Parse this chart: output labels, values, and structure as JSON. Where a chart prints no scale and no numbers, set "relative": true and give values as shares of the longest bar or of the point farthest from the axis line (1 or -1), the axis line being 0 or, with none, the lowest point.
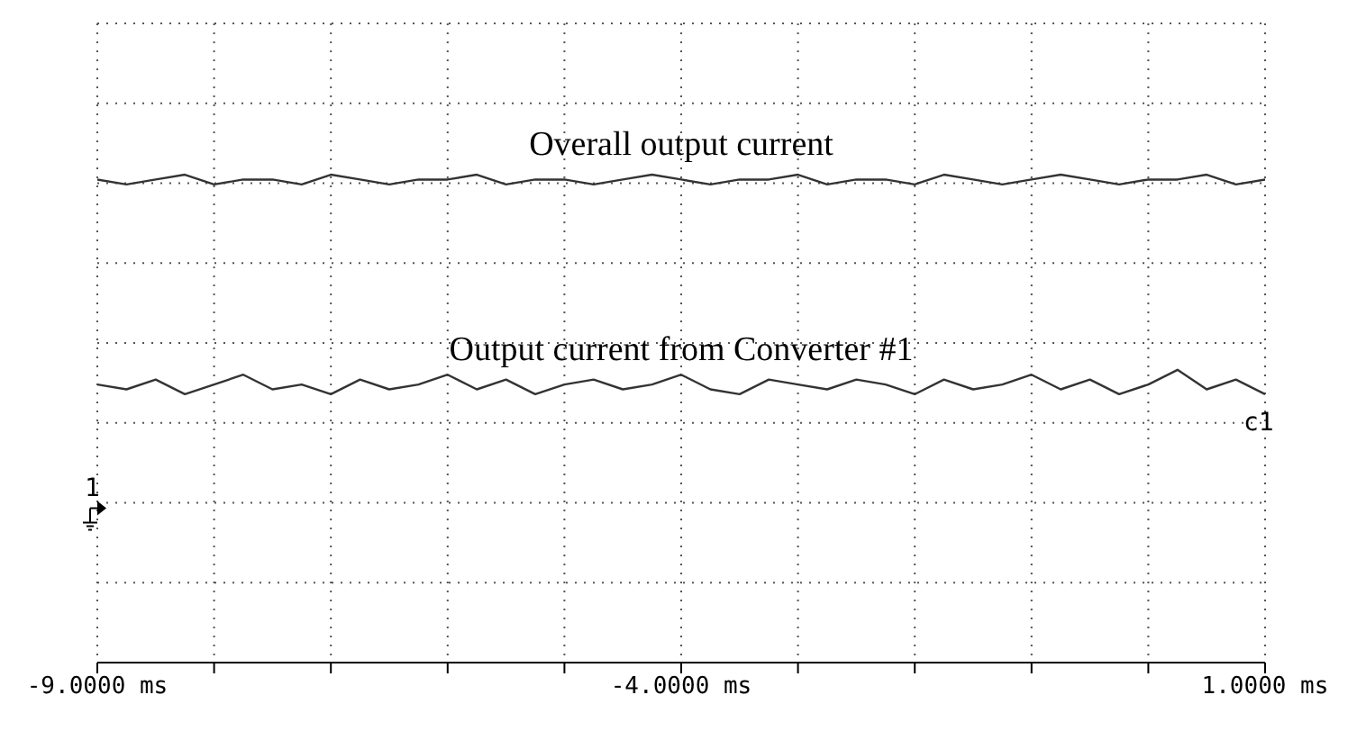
{
  "chart_data": {
    "type": "line",
    "relative": true,
    "xlim": [
      -9,
      1
    ],
    "xticks": [
      {
        "value": -9,
        "label": "-9.0000 ms"
      },
      {
        "value": -8,
        "label": null
      },
      {
        "value": -7,
        "label": null
      },
      {
        "value": -6,
        "label": null
      },
      {
        "value": -5,
        "label": null
      },
      {
        "value": -4,
        "label": "-4.0000 ms"
      },
      {
        "value": -3,
        "label": null
      },
      {
        "value": -2,
        "label": null
      },
      {
        "value": -1,
        "label": null
      },
      {
        "value": 0,
        "label": null
      },
      {
        "value": 1,
        "label": "1.0000 ms"
      }
    ],
    "x": [
      -9,
      -8.75,
      -8.5,
      -8.25,
      -8,
      -7.75,
      -7.5,
      -7.25,
      -7,
      -6.75,
      -6.5,
      -6.25,
      -6,
      -5.75,
      -5.5,
      -5.25,
      -5,
      -4.75,
      -4.5,
      -4.25,
      -4,
      -3.75,
      -3.5,
      -3.25,
      -3,
      -2.75,
      -2.5,
      -2.25,
      -2,
      -1.75,
      -1.5,
      -1.25,
      -1,
      -0.75,
      -0.5,
      -0.25,
      0,
      0.25,
      0.5,
      0.75,
      1
    ],
    "series": [
      {
        "name": "Overall output current",
        "color": "#333333",
        "values": [
          0.99,
          0.98,
          0.99,
          1,
          0.98,
          0.99,
          0.99,
          0.98,
          1,
          0.99,
          0.98,
          0.99,
          0.99,
          1,
          0.98,
          0.99,
          0.99,
          0.98,
          0.99,
          1,
          0.99,
          0.98,
          0.99,
          0.99,
          1,
          0.98,
          0.99,
          0.99,
          0.98,
          1,
          0.99,
          0.98,
          0.99,
          1,
          0.99,
          0.98,
          0.99,
          0.99,
          1,
          0.98,
          0.99
        ]
      },
      {
        "name": "Output current from Converter #1",
        "color": "#333333",
        "values": [
          0.57,
          0.56,
          0.58,
          0.55,
          0.57,
          0.59,
          0.56,
          0.57,
          0.55,
          0.58,
          0.56,
          0.57,
          0.59,
          0.56,
          0.58,
          0.55,
          0.57,
          0.58,
          0.56,
          0.57,
          0.59,
          0.56,
          0.55,
          0.58,
          0.57,
          0.56,
          0.58,
          0.57,
          0.55,
          0.58,
          0.56,
          0.57,
          0.59,
          0.56,
          0.58,
          0.55,
          0.57,
          0.6,
          0.56,
          0.58,
          0.55
        ]
      }
    ],
    "annotations": [
      "c1",
      "1"
    ],
    "grid": true,
    "line_style": "solid",
    "marker": "none"
  }
}
